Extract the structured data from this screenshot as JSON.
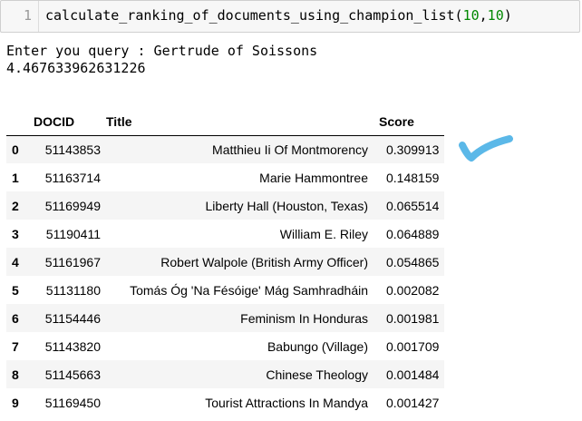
{
  "cell": {
    "line_number": "1",
    "code_func": "calculate_ranking_of_documents_using_champion_list(",
    "code_arg1": "10",
    "code_comma": ",",
    "code_arg2": "10",
    "code_close": ")"
  },
  "output": {
    "prompt_line": "Enter you query : Gertrude of Soissons",
    "elapsed": "4.467633962631226"
  },
  "table": {
    "columns": [
      "",
      "DOCID",
      "Title",
      "Score"
    ],
    "rows": [
      {
        "index": "0",
        "docid": "51143853",
        "title": "Matthieu Ii Of Montmorency",
        "score": "0.309913"
      },
      {
        "index": "1",
        "docid": "51163714",
        "title": "Marie Hammontree",
        "score": "0.148159"
      },
      {
        "index": "2",
        "docid": "51169949",
        "title": "Liberty Hall (Houston, Texas)",
        "score": "0.065514"
      },
      {
        "index": "3",
        "docid": "51190411",
        "title": "William E. Riley",
        "score": "0.064889"
      },
      {
        "index": "4",
        "docid": "51161967",
        "title": "Robert Walpole (British Army Officer)",
        "score": "0.054865"
      },
      {
        "index": "5",
        "docid": "51131180",
        "title": "Tomás Óg 'Na Fésóige' Mág Samhradháin",
        "score": "0.002082"
      },
      {
        "index": "6",
        "docid": "51154446",
        "title": "Feminism In Honduras",
        "score": "0.001981"
      },
      {
        "index": "7",
        "docid": "51143820",
        "title": "Babungo (Village)",
        "score": "0.001709"
      },
      {
        "index": "8",
        "docid": "51145663",
        "title": "Chinese Theology",
        "score": "0.001484"
      },
      {
        "index": "9",
        "docid": "51169450",
        "title": "Tourist Attractions In Mandya",
        "score": "0.001427"
      }
    ]
  },
  "annotation": {
    "icon": "checkmark-icon",
    "color": "#5bb8e8"
  }
}
